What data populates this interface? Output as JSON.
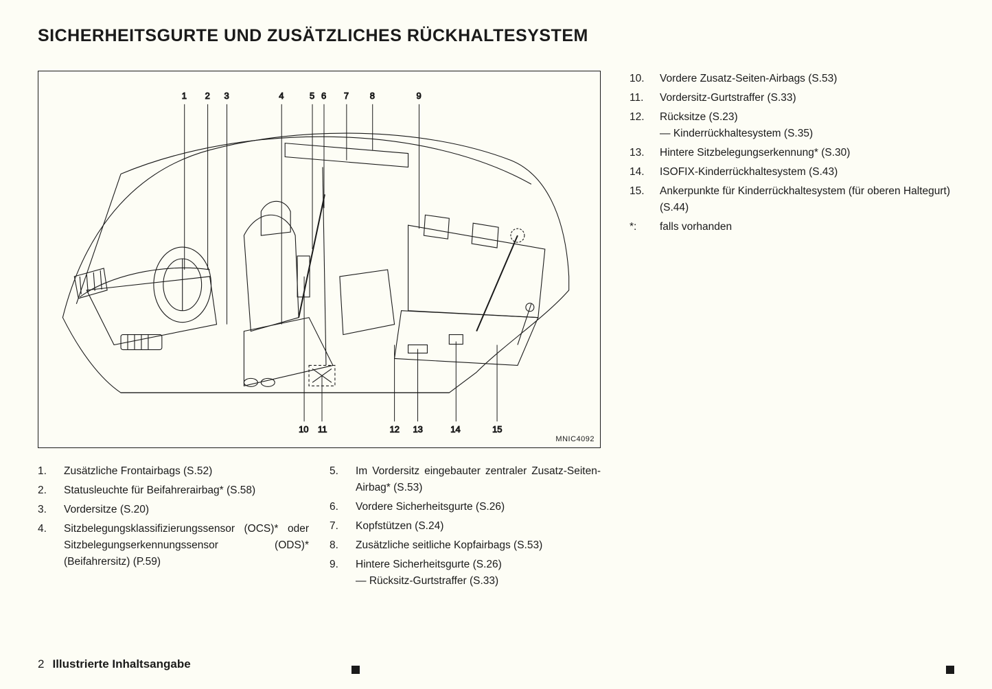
{
  "title": "SICHERHEITSGURTE UND ZUSÄTZLICHES RÜCKHALTESYSTEM",
  "diagram": {
    "id_label": "MNIC4092",
    "top_callouts": [
      "1",
      "2",
      "3",
      "4",
      "5",
      "6",
      "7",
      "8",
      "9"
    ],
    "bottom_callouts": [
      "10",
      "11",
      "12",
      "13",
      "14",
      "15"
    ],
    "stroke": "#1a1a1a",
    "stroke_width": 1.1,
    "bg": "#fdfdf5"
  },
  "list_col1": [
    {
      "n": "1.",
      "t": "Zusätzliche Frontairbags (S.52)"
    },
    {
      "n": "2.",
      "t": "Statusleuchte für Beifahrerairbag* (S.58)"
    },
    {
      "n": "3.",
      "t": "Vordersitze (S.20)"
    },
    {
      "n": "4.",
      "t": "Sitzbelegungsklassifizierungssensor (OCS)* oder Sitzbelegungserkennungssensor (ODS)* (Beifahrersitz) (P.59)",
      "justify": true
    }
  ],
  "list_col2": [
    {
      "n": "5.",
      "t": "Im Vordersitz eingebauter zentraler Zusatz-Seiten-Airbag* (S.53)",
      "justify": true
    },
    {
      "n": "6.",
      "t": "Vordere Sicherheitsgurte (S.26)"
    },
    {
      "n": "7.",
      "t": "Kopfstützen (S.24)"
    },
    {
      "n": "8.",
      "t": "Zusätzliche seitliche Kopfairbags (S.53)"
    },
    {
      "n": "9.",
      "t": "Hintere Sicherheitsgurte (S.26)",
      "sub": "Rücksitz-Gurtstraffer (S.33)"
    }
  ],
  "list_col3": [
    {
      "n": "10.",
      "t": "Vordere Zusatz-Seiten-Airbags (S.53)"
    },
    {
      "n": "11.",
      "t": "Vordersitz-Gurtstraffer (S.33)"
    },
    {
      "n": "12.",
      "t": "Rücksitze (S.23)",
      "sub": "Kinderrückhaltesystem (S.35)"
    },
    {
      "n": "13.",
      "t": "Hintere Sitzbelegungserkennung* (S.30)"
    },
    {
      "n": "14.",
      "t": "ISOFIX-Kinderrückhaltesystem (S.43)"
    },
    {
      "n": "15.",
      "t": "Ankerpunkte für Kinderrückhaltesystem (für oberen Haltegurt) (S.44)"
    }
  ],
  "footnote": {
    "sym": "*:",
    "t": "falls vorhanden"
  },
  "footer": {
    "page": "2",
    "section": "Illustrierte Inhaltsangabe"
  },
  "text_color": "#1a1a1a",
  "background_color": "#fdfdf5"
}
